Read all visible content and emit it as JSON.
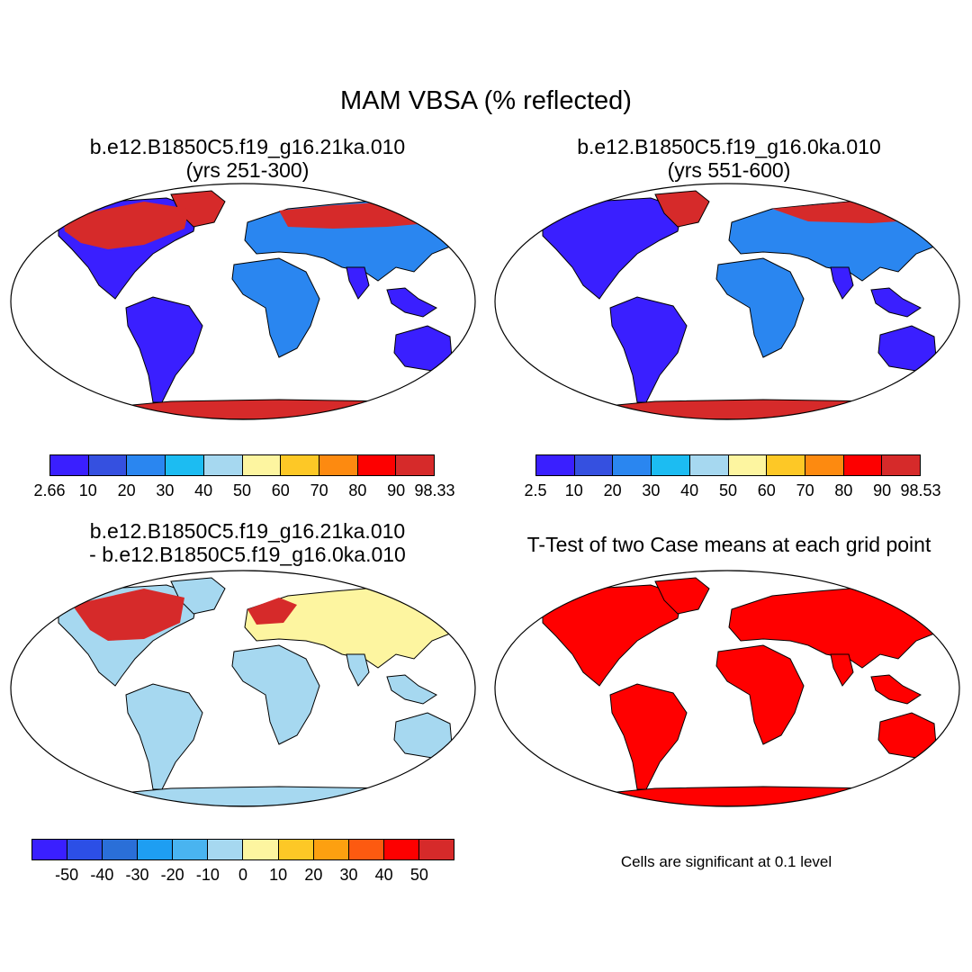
{
  "figure": {
    "title": "MAM VBSA (% reflected)"
  },
  "panels": [
    {
      "id": "case1",
      "title_line1": "b.e12.B1850C5.f19_g16.21ka.010",
      "title_line2": "(yrs 251-300)"
    },
    {
      "id": "case2",
      "title_line1": "b.e12.B1850C5.f19_g16.0ka.010",
      "title_line2": "(yrs 551-600)"
    },
    {
      "id": "diff",
      "title_line1": "b.e12.B1850C5.f19_g16.21ka.010",
      "title_line2": "- b.e12.B1850C5.f19_g16.0ka.010"
    },
    {
      "id": "ttest",
      "title_line1": "T-Test of two Case means at each grid point",
      "title_line2": ""
    }
  ],
  "colorbars": {
    "case1": {
      "colors": [
        "#3a1fff",
        "#3550e0",
        "#2a86f0",
        "#1cbcf2",
        "#a6d8f0",
        "#fdf5a0",
        "#fdc826",
        "#fd8a10",
        "#fd0000",
        "#d62a2a"
      ],
      "labels": [
        "2.66",
        "10",
        "20",
        "30",
        "40",
        "50",
        "60",
        "70",
        "80",
        "90",
        "98.33"
      ]
    },
    "case2": {
      "colors": [
        "#3a1fff",
        "#3550e0",
        "#2a86f0",
        "#1cbcf2",
        "#a6d8f0",
        "#fdf5a0",
        "#fdc826",
        "#fd8a10",
        "#fd0000",
        "#d62a2a"
      ],
      "labels": [
        "2.5",
        "10",
        "20",
        "30",
        "40",
        "50",
        "60",
        "70",
        "80",
        "90",
        "98.53"
      ]
    },
    "diff": {
      "colors": [
        "#3a1fff",
        "#2c4fe6",
        "#2a6fd8",
        "#1e9ef2",
        "#49b4f0",
        "#a6d8f0",
        "#fdf5a0",
        "#fdc826",
        "#fda010",
        "#fd5a10",
        "#fd0000",
        "#d62a2a"
      ],
      "labels": [
        "-50",
        "-40",
        "-30",
        "-20",
        "-10",
        "0",
        "10",
        "20",
        "30",
        "40",
        "50"
      ]
    }
  },
  "significance_note": "Cells are significant at 0.1 level",
  "map_colors": {
    "ocean": "#ffffff",
    "ice": "#d62a2a",
    "land_low": "#3a1fff",
    "land_mid": "#2a86f0",
    "diff_land": "#a6d8f0",
    "diff_pos": "#fdf5a0",
    "diff_high": "#d62a2a",
    "signif": "#ff0000"
  }
}
